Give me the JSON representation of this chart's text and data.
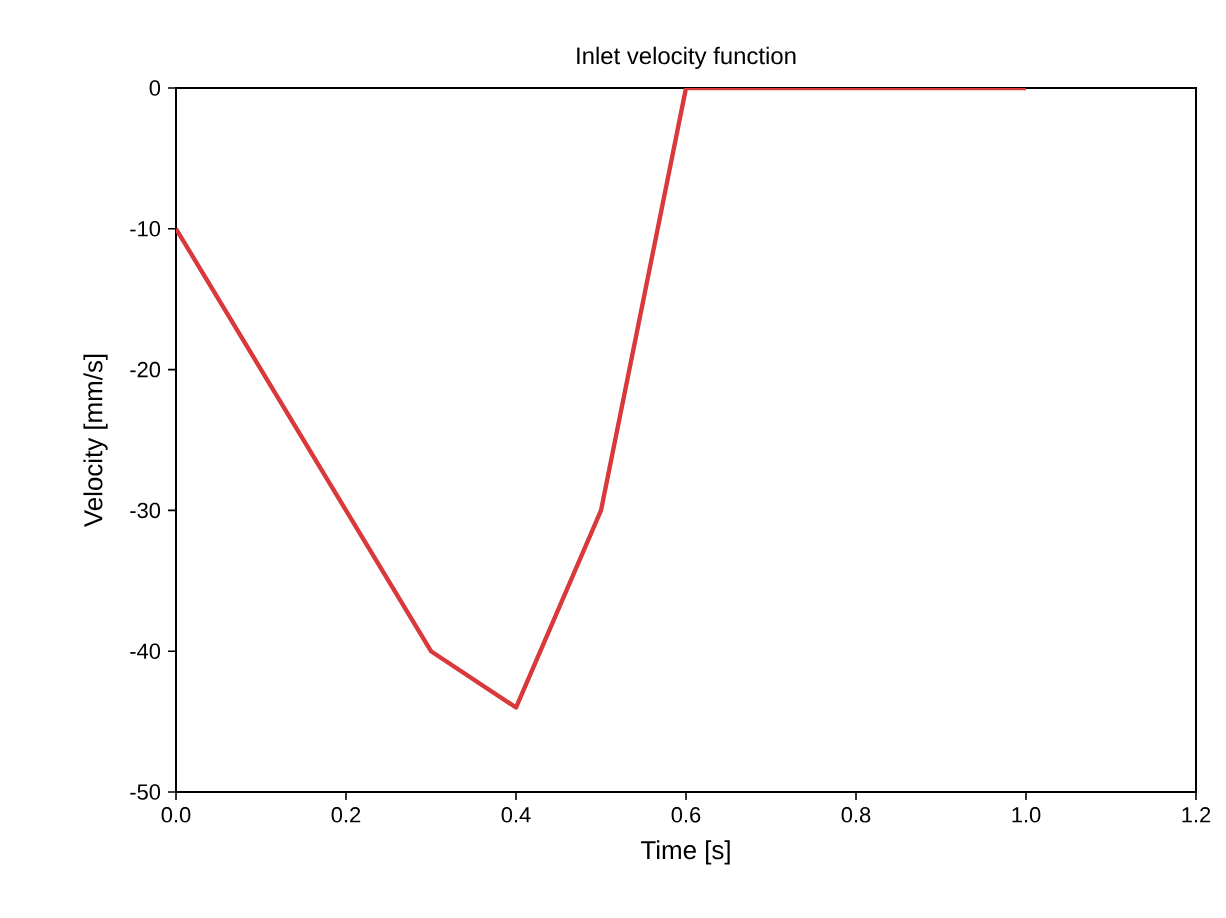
{
  "chart_data": {
    "type": "line",
    "title": "Inlet velocity function",
    "xlabel": "Time [s]",
    "ylabel": "Velocity [mm/s]",
    "x": [
      0,
      0.3,
      0.4,
      0.5,
      0.6,
      1.0
    ],
    "series": [
      {
        "color": "#d9393b",
        "values": [
          -10,
          -40,
          -44,
          -30,
          0,
          0
        ]
      }
    ],
    "xlim": [
      0,
      1.2
    ],
    "ylim": [
      -50,
      0
    ],
    "xticks": [
      {
        "value": 0,
        "label": "0.0"
      },
      0.2,
      0.4,
      0.6,
      0.8,
      {
        "value": 1.0,
        "label": "1.0"
      },
      1.2
    ],
    "yticks": [
      -50,
      -40,
      -30,
      -20,
      -10,
      0
    ],
    "grid": false,
    "marker": "none",
    "line_style": "solid"
  }
}
